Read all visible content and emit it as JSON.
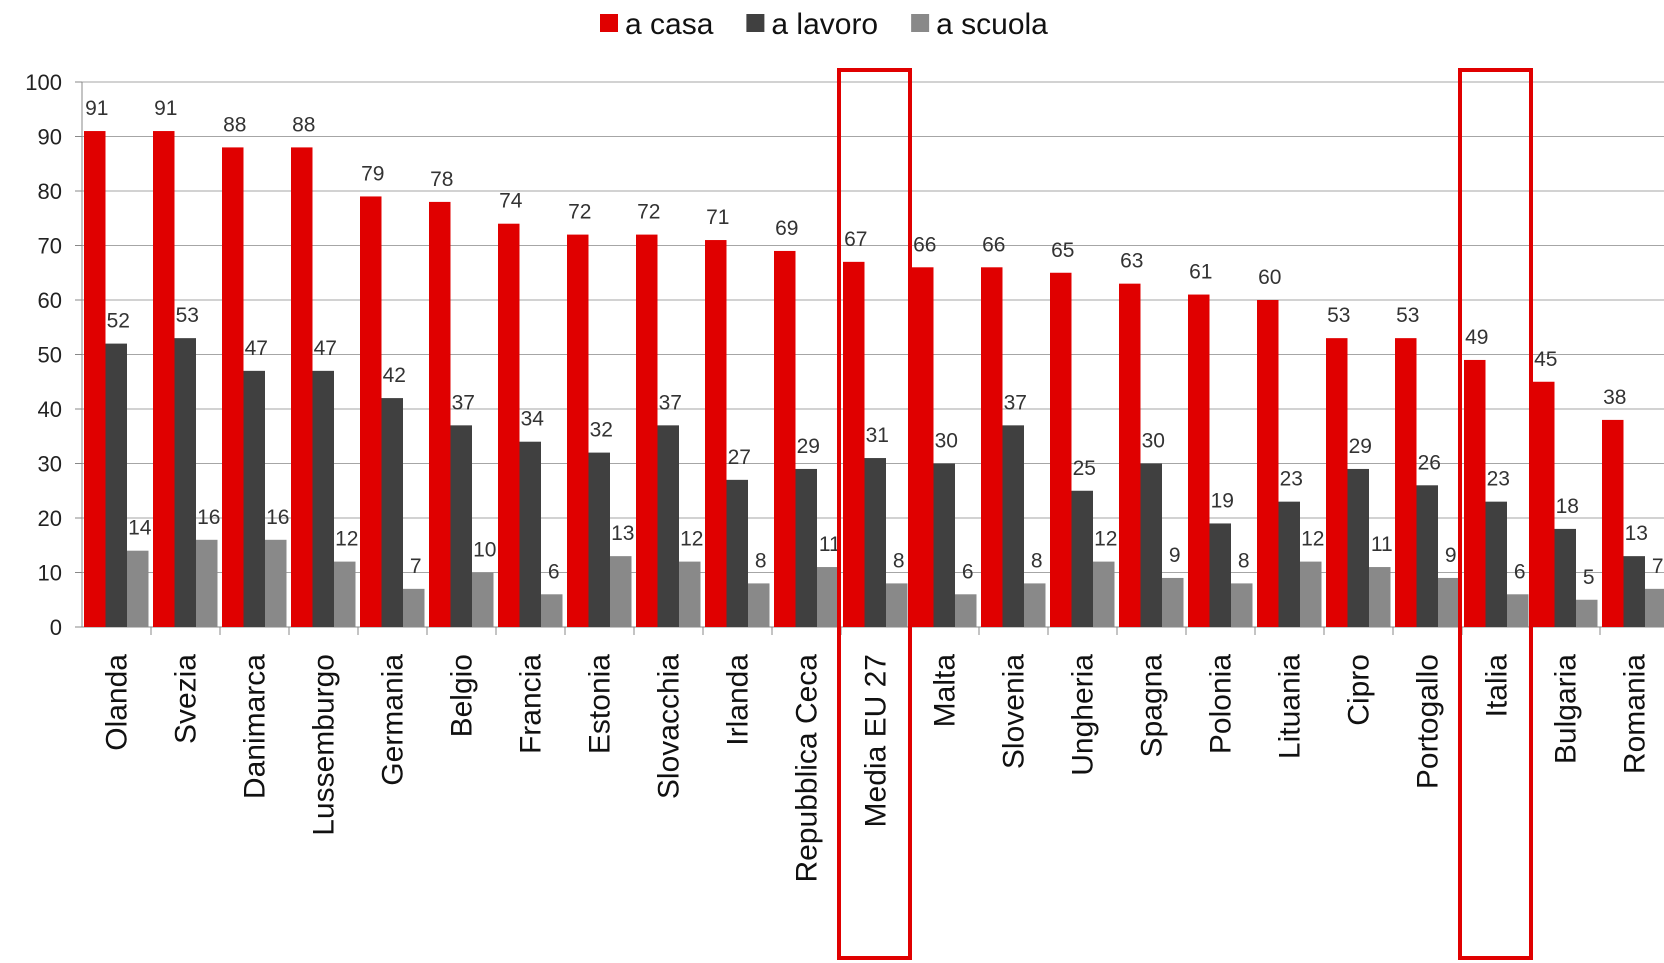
{
  "chart_data": {
    "type": "bar",
    "categories": [
      "Olanda",
      "Svezia",
      "Danimarca",
      "Lussemburgo",
      "Germania",
      "Belgio",
      "Francia",
      "Estonia",
      "Slovacchia",
      "Irlanda",
      "Repubblica Ceca",
      "Media EU 27",
      "Malta",
      "Slovenia",
      "Ungheria",
      "Spagna",
      "Polonia",
      "Lituania",
      "Cipro",
      "Portogallo",
      "Italia",
      "Bulgaria",
      "Romania"
    ],
    "series": [
      {
        "name": "a casa",
        "color": "#e00000",
        "values": [
          91,
          91,
          88,
          88,
          79,
          78,
          74,
          72,
          72,
          71,
          69,
          67,
          66,
          66,
          65,
          63,
          61,
          60,
          53,
          53,
          49,
          45,
          38
        ]
      },
      {
        "name": "a lavoro",
        "color": "#404040",
        "values": [
          52,
          53,
          47,
          47,
          42,
          37,
          34,
          32,
          37,
          27,
          29,
          31,
          30,
          37,
          25,
          30,
          19,
          23,
          29,
          26,
          23,
          18,
          13
        ]
      },
      {
        "name": "a scuola",
        "color": "#898989",
        "values": [
          14,
          16,
          16,
          12,
          7,
          10,
          6,
          13,
          12,
          8,
          11,
          8,
          6,
          8,
          12,
          9,
          8,
          12,
          11,
          9,
          6,
          5,
          7
        ]
      }
    ],
    "ylim": [
      0,
      100
    ],
    "yticks": [
      0,
      10,
      20,
      30,
      40,
      50,
      60,
      70,
      80,
      90,
      100
    ],
    "grid": true,
    "legend": "top"
  }
}
